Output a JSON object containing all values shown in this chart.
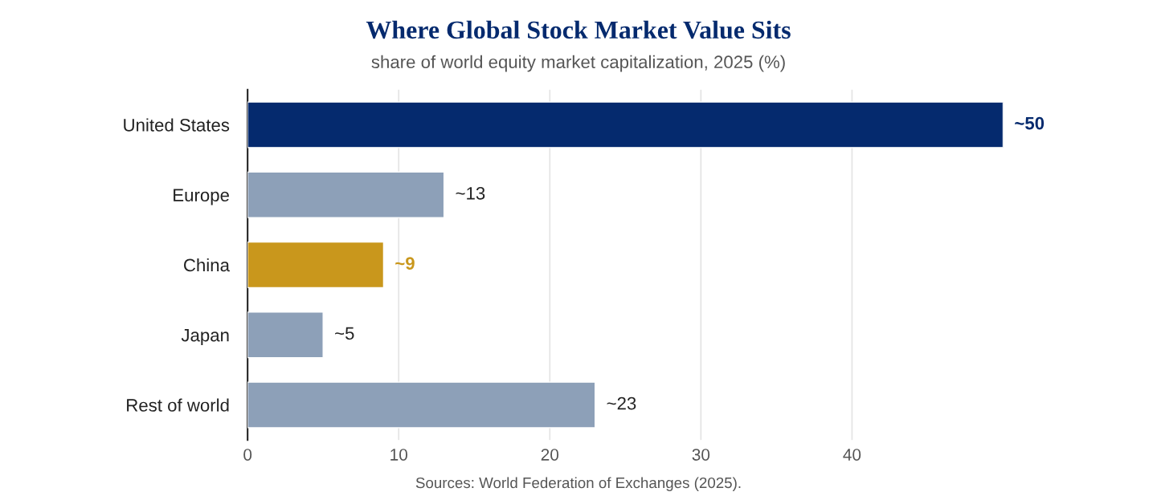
{
  "chart_data": {
    "type": "bar",
    "orientation": "horizontal",
    "title": "Where Global Stock Market Value Sits",
    "subtitle": "share of world equity market capitalization, 2025 (%)",
    "categories": [
      "United States",
      "Europe",
      "China",
      "Japan",
      "Rest of world"
    ],
    "values": [
      50,
      13,
      9,
      5,
      23
    ],
    "colors": [
      "#052a6e",
      "#8da0b8",
      "#c9971c",
      "#8da0b8",
      "#8da0b8"
    ],
    "value_labels": [
      "~50",
      "~13",
      "~9",
      "~5",
      "~23"
    ],
    "xlim": [
      0,
      50
    ],
    "xticks": [
      0,
      10,
      20,
      30,
      40
    ],
    "grid": "x",
    "legend": false,
    "annotations": [
      "Sources: World Federation of Exchanges (2025)."
    ]
  }
}
